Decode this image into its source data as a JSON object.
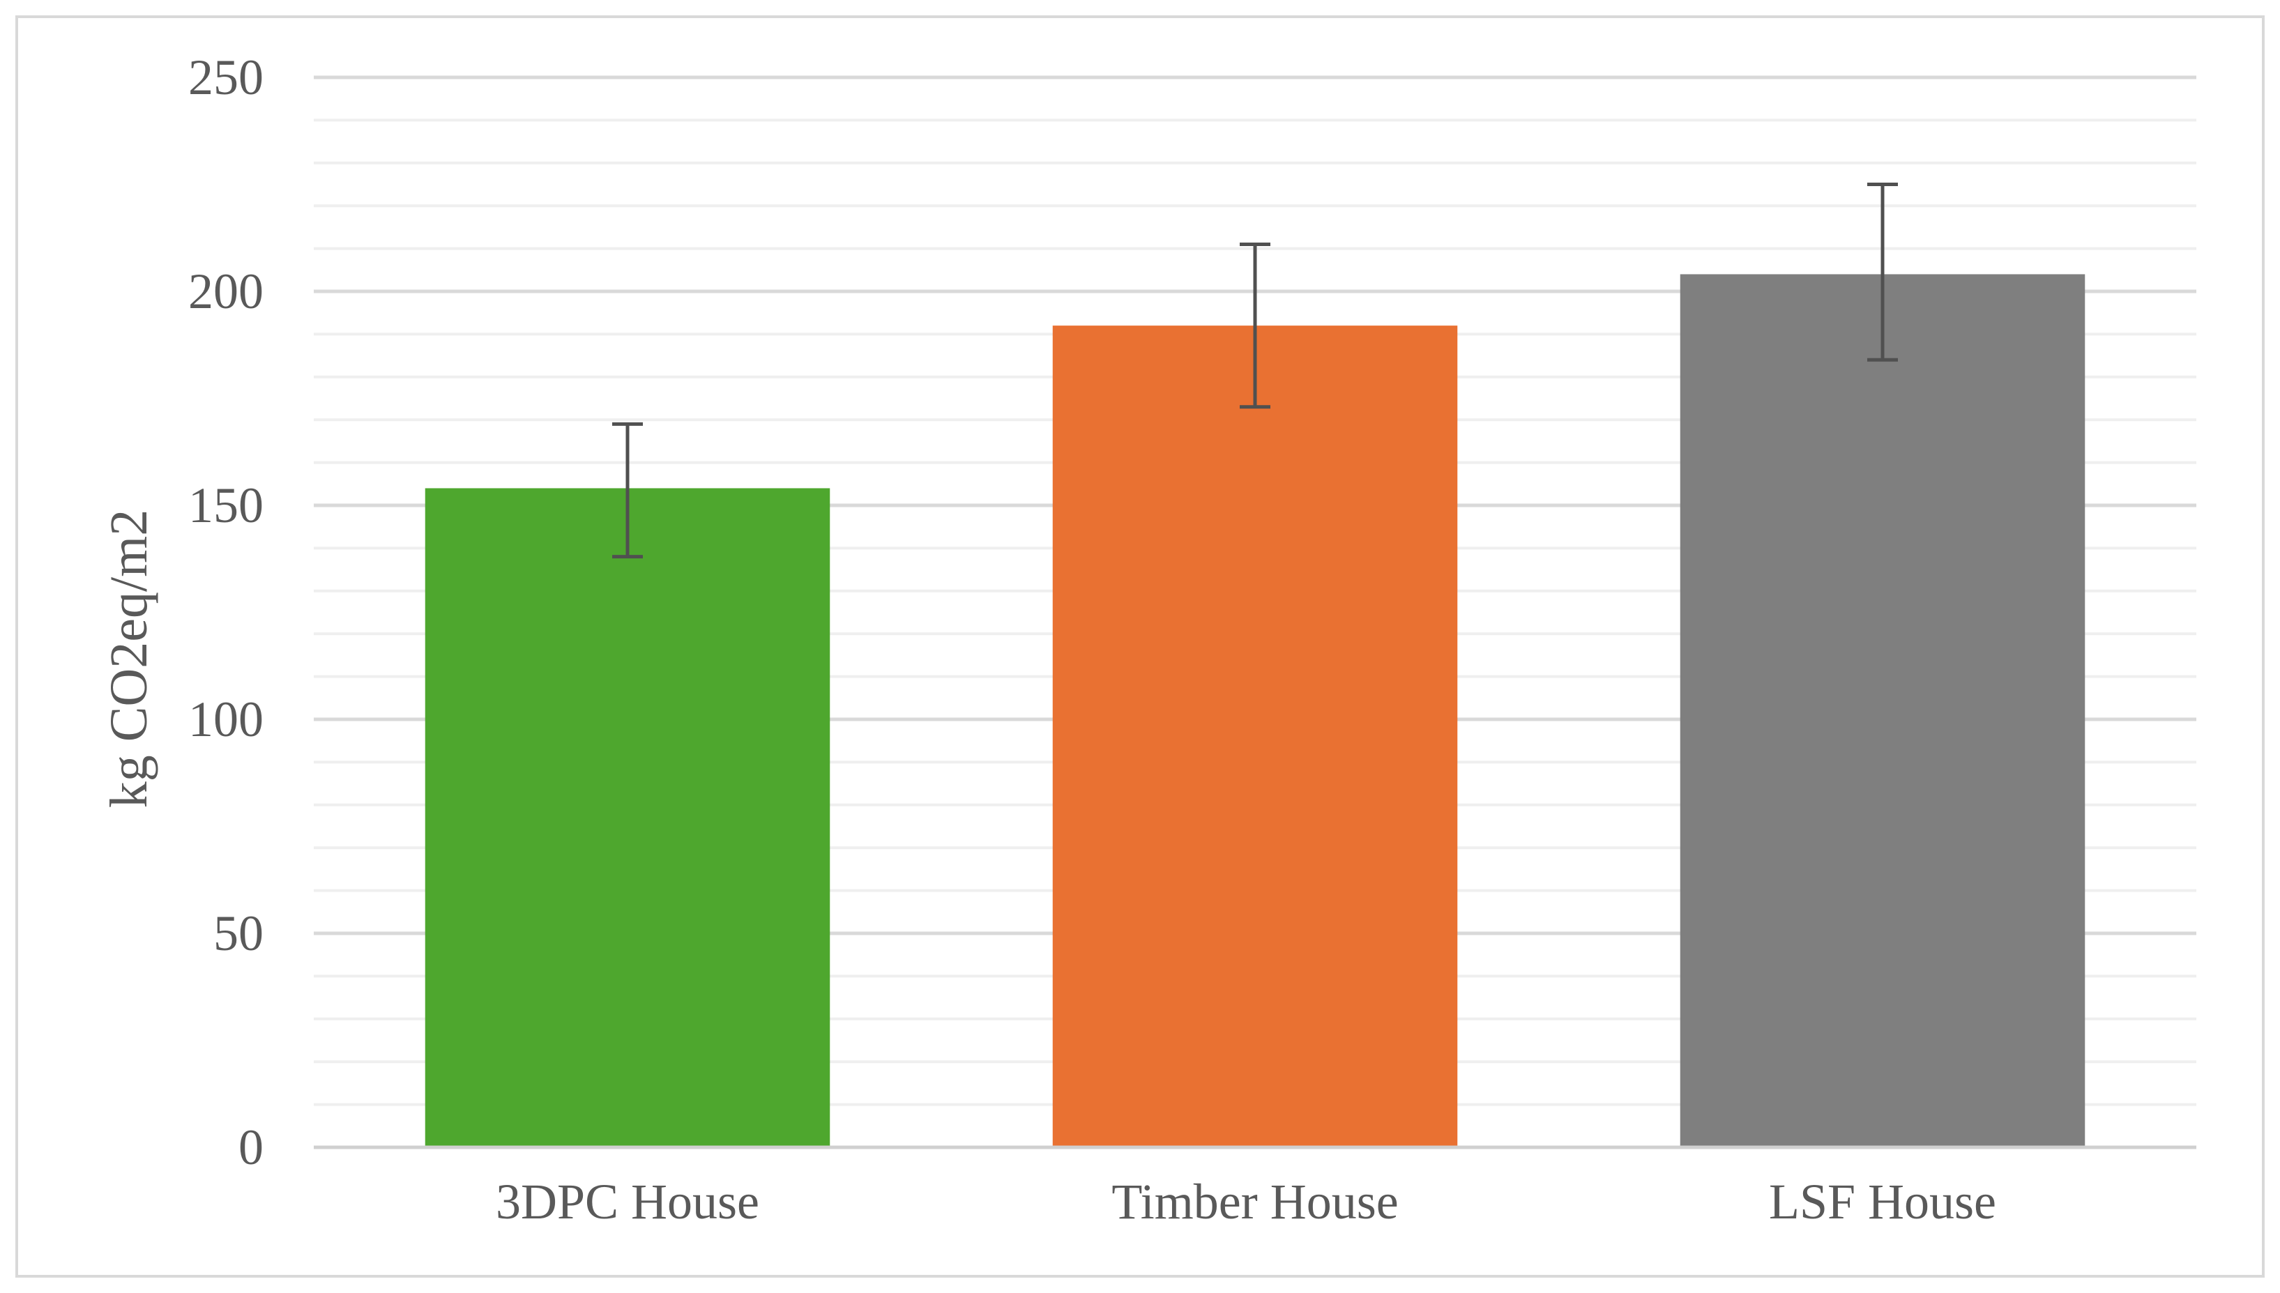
{
  "chart_data": {
    "type": "bar",
    "title": "",
    "xlabel": "",
    "ylabel": "kg CO2eq/m2",
    "categories": [
      "3DPC House",
      "Timber House",
      "LSF House"
    ],
    "values": [
      154,
      192,
      204
    ],
    "error_bars": [
      {
        "low": 138,
        "high": 169
      },
      {
        "low": 173,
        "high": 211
      },
      {
        "low": 184,
        "high": 225
      }
    ],
    "colors": [
      "#4ea72e",
      "#e97132",
      "#7f7f7f"
    ],
    "ylim": [
      0,
      250
    ],
    "major_ticks": [
      0,
      50,
      100,
      150,
      200,
      250
    ],
    "minor_tick_step": 10,
    "grid": true,
    "legend": "none"
  }
}
